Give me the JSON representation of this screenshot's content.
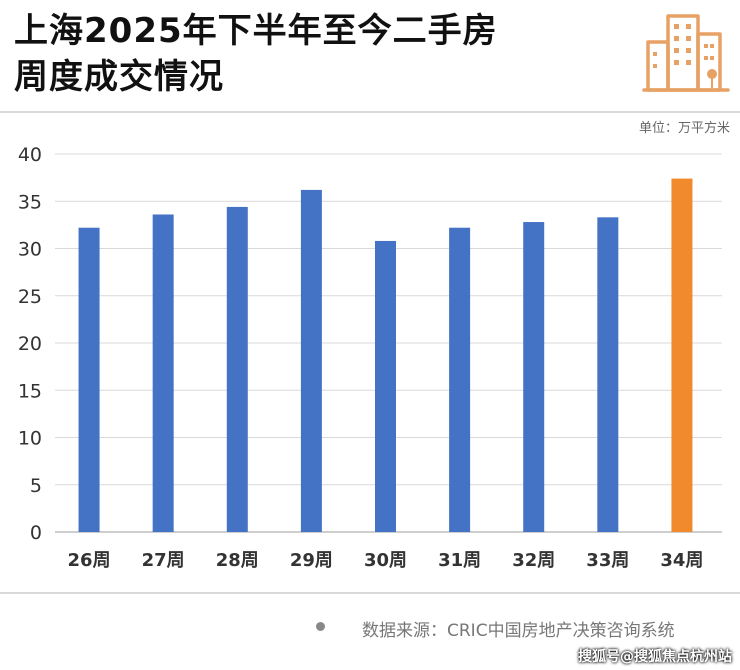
{
  "header": {
    "title_line1": "上海2025年下半年至今二手房",
    "title_line2": "周度成交情况",
    "icon": "building-icon"
  },
  "unit_label": "单位：万平方米",
  "footer": {
    "source": "数据来源：CRIC中国房地产决策咨询系统",
    "watermark": "搜狐号@搜狐焦点杭州站"
  },
  "colors": {
    "bar": "#4472c4",
    "highlight_bar": "#f08a2c",
    "grid": "#d9d9d9",
    "axis_text": "#333333",
    "icon": "#e8a165"
  },
  "chart_data": {
    "type": "bar",
    "title": "上海2025年下半年至今二手房周度成交情况",
    "xlabel": "",
    "ylabel": "",
    "unit": "单位：万平方米",
    "categories": [
      "26周",
      "27周",
      "28周",
      "29周",
      "30周",
      "31周",
      "32周",
      "33周",
      "34周"
    ],
    "values": [
      32.2,
      33.6,
      34.4,
      36.2,
      30.8,
      32.2,
      32.8,
      33.3,
      37.4
    ],
    "highlight_index": 8,
    "ylim": [
      0,
      40
    ],
    "yticks": [
      0,
      5,
      10,
      15,
      20,
      25,
      30,
      35,
      40
    ],
    "grid": true,
    "legend": "none"
  }
}
